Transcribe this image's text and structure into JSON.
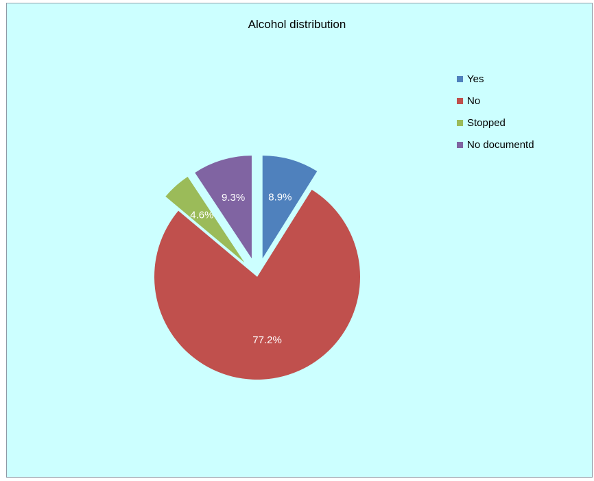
{
  "chart_data": {
    "type": "pie",
    "title": "Alcohol distribution",
    "legend_position": "right",
    "slices": [
      {
        "label": "Yes",
        "value": 8.9,
        "data_label": "8.9%",
        "color": "#4f81bd",
        "exploded": true
      },
      {
        "label": "No",
        "value": 77.2,
        "data_label": "77.2%",
        "color": "#c0504d",
        "exploded": false
      },
      {
        "label": "Stopped",
        "value": 4.6,
        "data_label": "4.6%",
        "color": "#9bbb59",
        "exploded": true
      },
      {
        "label": "No documentd",
        "value": 9.3,
        "data_label": "9.3%",
        "color": "#8064a2",
        "exploded": true
      }
    ]
  },
  "colors": {
    "plot_background": "#ccffff",
    "data_label_text": "#ffffff"
  }
}
